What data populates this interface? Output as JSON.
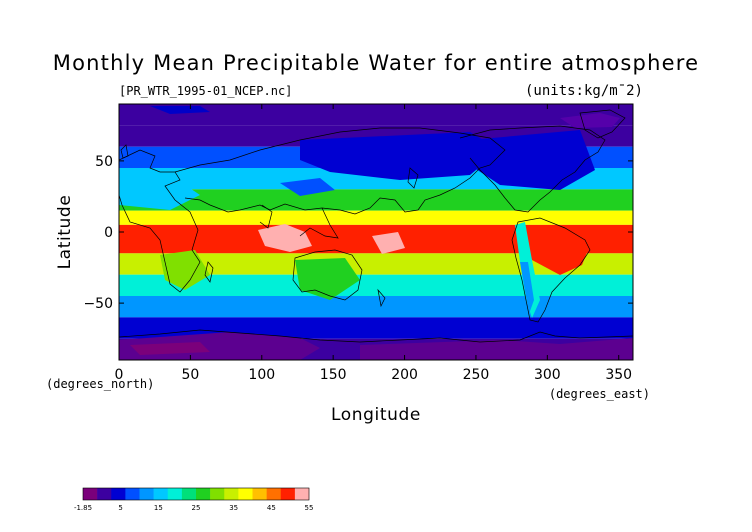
{
  "chart_data": {
    "type": "heatmap",
    "title": "Monthly Mean Precipitable Water for entire atmosphere",
    "source_file": "[PR_WTR_1995-01_NCEP.nc]",
    "units_label": "(units:kg/m¯2)",
    "xlabel": "Longitude",
    "ylabel": "Latitude",
    "x_units": "(degrees_east)",
    "y_units": "(degrees_north)",
    "xlim": [
      0,
      360
    ],
    "ylim": [
      -90,
      90
    ],
    "x_ticks": [
      0,
      50,
      100,
      150,
      200,
      250,
      300,
      350
    ],
    "y_ticks": [
      50,
      0,
      -50
    ],
    "y_tick_labels": [
      "50",
      "0",
      "−50"
    ],
    "grid": false,
    "colorbar": {
      "ticks": [
        "-1.85",
        "5",
        "15",
        "25",
        "35",
        "45",
        "55"
      ],
      "min": -1.85,
      "max": 55,
      "colors": [
        "#7b007b",
        "#3c00a0",
        "#0000d2",
        "#0050ff",
        "#0096ff",
        "#00c8ff",
        "#00f0d8",
        "#00e07a",
        "#20d020",
        "#80e000",
        "#c8f000",
        "#ffff00",
        "#ffc000",
        "#ff7000",
        "#ff2000",
        "#ffb0b0"
      ]
    },
    "latitude_bands": [
      {
        "lat": [
          90,
          75
        ],
        "approx_value": 3
      },
      {
        "lat": [
          75,
          60
        ],
        "approx_value": 5
      },
      {
        "lat": [
          60,
          45
        ],
        "approx_value": 10
      },
      {
        "lat": [
          45,
          30
        ],
        "approx_value": 17
      },
      {
        "lat": [
          30,
          15
        ],
        "approx_value": 27
      },
      {
        "lat": [
          15,
          5
        ],
        "approx_value": 40
      },
      {
        "lat": [
          5,
          -15
        ],
        "approx_value": 50
      },
      {
        "lat": [
          -15,
          -30
        ],
        "approx_value": 34
      },
      {
        "lat": [
          -30,
          -45
        ],
        "approx_value": 22
      },
      {
        "lat": [
          -45,
          -60
        ],
        "approx_value": 14
      },
      {
        "lat": [
          -60,
          -75
        ],
        "approx_value": 7
      },
      {
        "lat": [
          -75,
          -90
        ],
        "approx_value": 3
      }
    ]
  }
}
